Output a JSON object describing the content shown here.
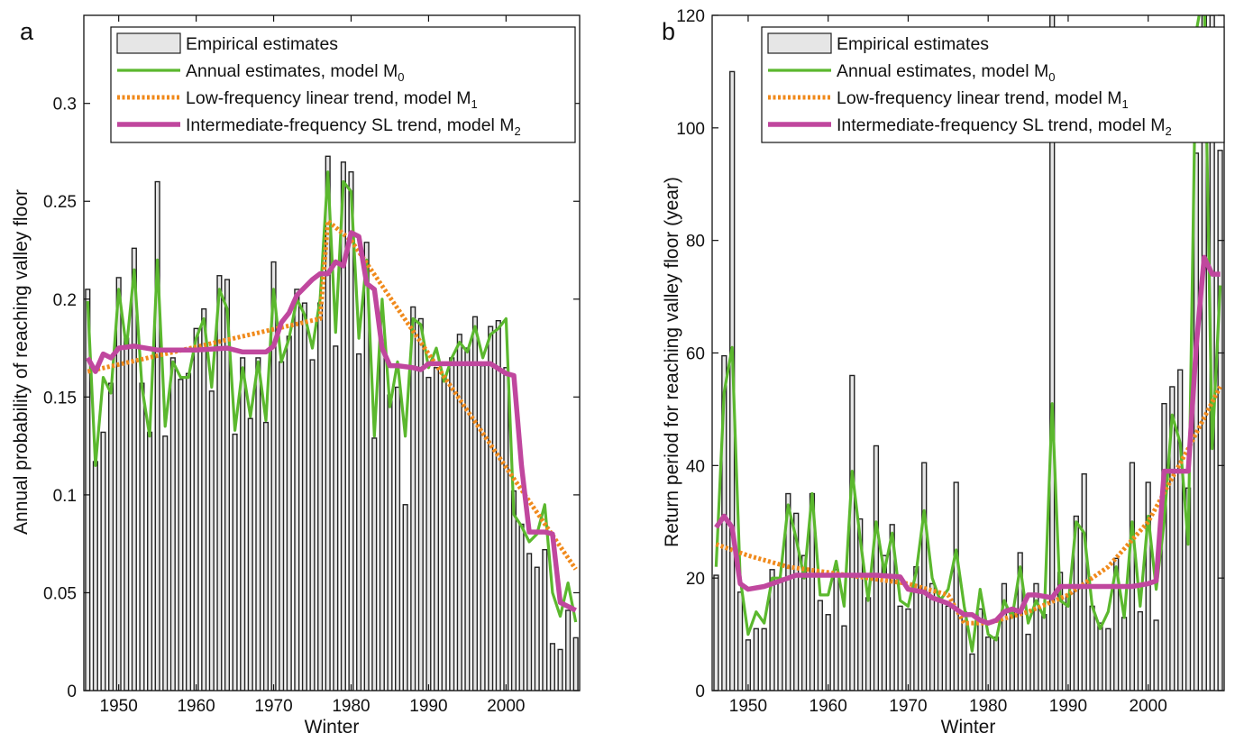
{
  "chart_data": [
    {
      "panel": "a",
      "type": "bar",
      "xlabel": "Winter",
      "ylabel": "Annual probability of reaching valley floor",
      "xlim": [
        1945.5,
        2009.5
      ],
      "ylim": [
        0,
        0.345
      ],
      "xticks": [
        1950,
        1960,
        1970,
        1980,
        1990,
        2000
      ],
      "yticks": [
        0,
        0.05,
        0.1,
        0.15,
        0.2,
        0.25,
        0.3
      ],
      "ytick_labels": [
        "0",
        "0.05",
        "0.1",
        "0.15",
        "0.2",
        "0.25",
        "0.3"
      ],
      "legend": "top",
      "x": [
        1946,
        1947,
        1948,
        1949,
        1950,
        1951,
        1952,
        1953,
        1954,
        1955,
        1956,
        1957,
        1958,
        1959,
        1960,
        1961,
        1962,
        1963,
        1964,
        1965,
        1966,
        1967,
        1968,
        1969,
        1970,
        1971,
        1972,
        1973,
        1974,
        1975,
        1976,
        1977,
        1978,
        1979,
        1980,
        1981,
        1982,
        1983,
        1984,
        1985,
        1986,
        1987,
        1988,
        1989,
        1990,
        1991,
        1992,
        1993,
        1994,
        1995,
        1996,
        1997,
        1998,
        1999,
        2000,
        2001,
        2002,
        2003,
        2004,
        2005,
        2006,
        2007,
        2008,
        2009
      ],
      "series": [
        {
          "name": "Empirical estimates",
          "kind": "bar",
          "color": "#e6e6e6",
          "values": [
            0.205,
            0.117,
            0.132,
            0.157,
            0.211,
            0.18,
            0.226,
            0.157,
            0.132,
            0.26,
            0.13,
            0.17,
            0.159,
            0.162,
            0.185,
            0.195,
            0.153,
            0.212,
            0.21,
            0.131,
            0.17,
            0.139,
            0.17,
            0.137,
            0.219,
            0.168,
            0.181,
            0.205,
            0.198,
            0.169,
            0.198,
            0.273,
            0.176,
            0.27,
            0.265,
            0.172,
            0.229,
            0.129,
            0.175,
            0.151,
            0.155,
            0.095,
            0.196,
            0.19,
            0.16,
            0.165,
            0.16,
            0.17,
            0.182,
            0.175,
            0.191,
            0.166,
            0.186,
            0.189,
            0.165,
            0.102,
            0.085,
            0.07,
            0.063,
            0.072,
            0.024,
            0.021,
            0.041,
            0.027
          ]
        },
        {
          "name": "Annual estimates, model M",
          "subscript": "0",
          "kind": "line",
          "color": "#5bb82e",
          "values": [
            0.199,
            0.115,
            0.16,
            0.152,
            0.205,
            0.175,
            0.215,
            0.155,
            0.13,
            0.22,
            0.135,
            0.168,
            0.16,
            0.16,
            0.18,
            0.19,
            0.155,
            0.205,
            0.195,
            0.133,
            0.165,
            0.14,
            0.168,
            0.138,
            0.205,
            0.168,
            0.18,
            0.2,
            0.192,
            0.175,
            0.2,
            0.265,
            0.183,
            0.26,
            0.255,
            0.18,
            0.22,
            0.13,
            0.2,
            0.145,
            0.168,
            0.13,
            0.19,
            0.187,
            0.165,
            0.175,
            0.158,
            0.17,
            0.178,
            0.173,
            0.186,
            0.17,
            0.182,
            0.185,
            0.19,
            0.09,
            0.084,
            0.076,
            0.08,
            0.095,
            0.05,
            0.038,
            0.055,
            0.035
          ]
        },
        {
          "name": "Low-frequency linear trend, model M",
          "subscript": "1",
          "kind": "dotted",
          "color": "#f08a1c",
          "x": [
            1946,
            1976,
            1977,
            1980,
            2009
          ],
          "values": [
            0.163,
            0.19,
            0.24,
            0.23,
            0.062
          ]
        },
        {
          "name": "Intermediate-frequency SL trend,  model M",
          "subscript": "2",
          "kind": "line",
          "color": "#c0479e",
          "x": [
            1946,
            1947,
            1948,
            1949,
            1950,
            1952,
            1955,
            1960,
            1964,
            1966,
            1968,
            1969,
            1970,
            1971,
            1972,
            1973,
            1975,
            1976,
            1977,
            1978,
            1979,
            1980,
            1981,
            1982,
            1983,
            1984,
            1985,
            1986,
            1988,
            1989,
            1990,
            1993,
            1998,
            2000,
            2001,
            2002,
            2003,
            2005,
            2006,
            2007,
            2009
          ],
          "values": [
            0.17,
            0.163,
            0.172,
            0.17,
            0.175,
            0.176,
            0.174,
            0.174,
            0.175,
            0.173,
            0.173,
            0.173,
            0.176,
            0.188,
            0.193,
            0.202,
            0.21,
            0.213,
            0.213,
            0.219,
            0.217,
            0.234,
            0.232,
            0.208,
            0.205,
            0.175,
            0.166,
            0.166,
            0.165,
            0.164,
            0.167,
            0.167,
            0.167,
            0.162,
            0.161,
            0.115,
            0.081,
            0.081,
            0.08,
            0.045,
            0.041
          ]
        }
      ]
    },
    {
      "panel": "b",
      "type": "bar",
      "xlabel": "Winter",
      "ylabel": "Return period for reaching valley floor (year)",
      "xlim": [
        1945.5,
        2009.5
      ],
      "ylim": [
        0,
        120
      ],
      "xticks": [
        1950,
        1960,
        1970,
        1980,
        1990,
        2000
      ],
      "yticks": [
        0,
        20,
        40,
        60,
        80,
        100,
        120
      ],
      "ytick_labels": [
        "0",
        "20",
        "40",
        "60",
        "80",
        "100",
        "120"
      ],
      "legend": "top",
      "x": [
        1946,
        1947,
        1948,
        1949,
        1950,
        1951,
        1952,
        1953,
        1954,
        1955,
        1956,
        1957,
        1958,
        1959,
        1960,
        1961,
        1962,
        1963,
        1964,
        1965,
        1966,
        1967,
        1968,
        1969,
        1970,
        1971,
        1972,
        1973,
        1974,
        1975,
        1976,
        1977,
        1978,
        1979,
        1980,
        1981,
        1982,
        1983,
        1984,
        1985,
        1986,
        1987,
        1988,
        1989,
        1990,
        1991,
        1992,
        1993,
        1994,
        1995,
        1996,
        1997,
        1998,
        1999,
        2000,
        2001,
        2002,
        2003,
        2004,
        2005,
        2006,
        2007,
        2008,
        2009
      ],
      "series": [
        {
          "name": "Empirical estimates",
          "kind": "bar",
          "color": "#e6e6e6",
          "values": [
            20.5,
            59.5,
            110,
            17.5,
            9,
            11,
            11,
            21.5,
            20,
            35,
            31.5,
            24,
            35,
            16,
            13.5,
            21.5,
            11.5,
            56,
            30.5,
            16.5,
            43.5,
            24,
            29.5,
            15,
            14.5,
            22,
            40.5,
            19,
            16.5,
            15,
            37,
            14,
            6.5,
            14.5,
            9.5,
            9.5,
            19,
            14.5,
            24.5,
            10,
            19,
            13.5,
            120,
            21,
            17,
            31,
            38.5,
            15,
            12,
            11,
            23.5,
            13,
            40.5,
            14,
            37,
            12.5,
            51,
            54,
            57,
            36,
            95.5,
            120,
            120,
            96
          ]
        },
        {
          "name": "Annual estimates, model M",
          "subscript": "0",
          "kind": "line",
          "color": "#5bb82e",
          "values": [
            22,
            53,
            61,
            20,
            10,
            14,
            12,
            20,
            20,
            33,
            27,
            20,
            35,
            17,
            17,
            23,
            15,
            39,
            27,
            16,
            30,
            21,
            28,
            16,
            15,
            21,
            32,
            20,
            16,
            18,
            25,
            15,
            7,
            18,
            10,
            9,
            16,
            13,
            22,
            12,
            16,
            13,
            51,
            16,
            15,
            30,
            28,
            15,
            11,
            14,
            22,
            13,
            30,
            15,
            31,
            18,
            30,
            49,
            44,
            26,
            117,
            125,
            43,
            72
          ]
        },
        {
          "name": "Low-frequency linear trend, model M",
          "subscript": "1",
          "kind": "dotted",
          "color": "#f08a1c",
          "x": [
            1946,
            1950,
            1955,
            1960,
            1965,
            1970,
            1975,
            1977,
            1980,
            1985,
            1990,
            1995,
            2000,
            2005,
            2009
          ],
          "values": [
            26,
            24,
            22,
            21,
            20,
            19,
            17,
            12,
            12,
            14,
            17,
            22,
            30,
            43,
            54
          ]
        },
        {
          "name": "Intermediate-frequency SL trend,  model M",
          "subscript": "2",
          "kind": "line",
          "color": "#c0479e",
          "x": [
            1946,
            1947,
            1948,
            1949,
            1950,
            1952,
            1954,
            1956,
            1960,
            1964,
            1966,
            1968,
            1969,
            1970,
            1972,
            1973,
            1975,
            1976,
            1977,
            1978,
            1979,
            1980,
            1981,
            1982,
            1983,
            1984,
            1985,
            1986,
            1988,
            1989,
            1990,
            1993,
            1998,
            2000,
            2001,
            2002,
            2003,
            2005,
            2006,
            2007,
            2008,
            2009
          ],
          "values": [
            29,
            31,
            29,
            19,
            18,
            18.5,
            19.5,
            20.5,
            20.5,
            20.5,
            20.5,
            20.3,
            20.2,
            18,
            17.5,
            16.5,
            15.5,
            14.5,
            13.5,
            13.5,
            12.5,
            12,
            12.5,
            14,
            14.5,
            14,
            17,
            17,
            16.5,
            18.5,
            18.5,
            18.5,
            18.5,
            19,
            19.5,
            39,
            39,
            39,
            61,
            77,
            74,
            74
          ]
        }
      ]
    }
  ]
}
